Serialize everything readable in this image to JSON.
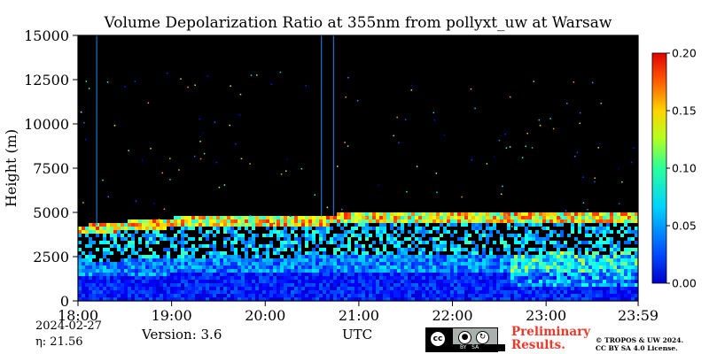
{
  "chart_data": {
    "type": "heatmap",
    "title": "Volume Depolarization Ratio at 355nm from pollyxt_uw at Warsaw",
    "ylabel": "Height (m)",
    "xlabel": "UTC",
    "x_ticks": [
      "18:00",
      "19:00",
      "20:00",
      "21:00",
      "22:00",
      "23:00",
      "23:59"
    ],
    "x_range_hours": [
      18.0,
      23.983
    ],
    "y_ticks": [
      0,
      2500,
      5000,
      7500,
      10000,
      12500,
      15000
    ],
    "y_tick_labels": [
      "0",
      "2500",
      "5000",
      "7500",
      "10000",
      "12500",
      "15000"
    ],
    "ylim": [
      0,
      15000
    ],
    "colorbar": {
      "range": [
        0.0,
        0.2
      ],
      "ticks": [
        0.0,
        0.05,
        0.1,
        0.15,
        0.2
      ],
      "tick_labels": [
        "0.00",
        "0.05",
        "0.10",
        "0.15",
        "0.20"
      ],
      "colormap": "jet"
    },
    "background_color": "#000000",
    "aerosol_layer_top_m": [
      {
        "time_h": 18.0,
        "height": 4150
      },
      {
        "time_h": 18.5,
        "height": 4400
      },
      {
        "time_h": 19.0,
        "height": 4600
      },
      {
        "time_h": 19.5,
        "height": 4750
      },
      {
        "time_h": 20.0,
        "height": 4700
      },
      {
        "time_h": 20.5,
        "height": 4750
      },
      {
        "time_h": 21.0,
        "height": 4850
      },
      {
        "time_h": 21.5,
        "height": 4950
      },
      {
        "time_h": 22.0,
        "height": 4850
      },
      {
        "time_h": 22.5,
        "height": 4900
      },
      {
        "time_h": 23.0,
        "height": 5000
      },
      {
        "time_h": 23.5,
        "height": 4950
      },
      {
        "time_h": 23.98,
        "height": 5000
      }
    ],
    "vertical_line_times_h": [
      18.2,
      20.6,
      20.73
    ],
    "vertical_line_color": "#1e74c8"
  },
  "footer": {
    "date": "2024-02-27",
    "eta": "η:  21.56",
    "version": "Version: 3.6",
    "utc": "UTC",
    "preliminary_line1": "Preliminary",
    "preliminary_line2": "Results.",
    "copyright_line1": "© TROPOS & UW 2024.",
    "copyright_line2": "CC BY SA 4.0 License.",
    "license_badge_symbol": "cc",
    "license_badge_text": "BY   SA",
    "preliminary_color": "#e8392b"
  }
}
